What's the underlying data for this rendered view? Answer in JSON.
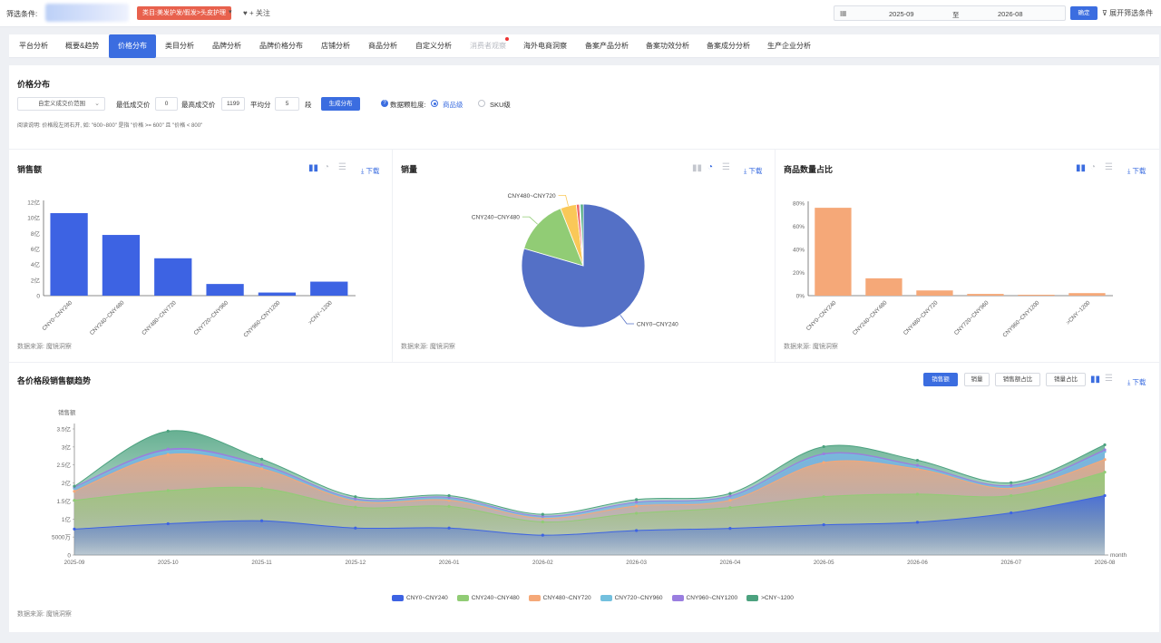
{
  "filter": {
    "label": "筛选条件:",
    "tag": "类目:美发护发/假发>头皮护理",
    "follow": "♥ + 关注",
    "date_start": "2025-09",
    "date_sep": "至",
    "date_end": "2026-08",
    "confirm": "确定",
    "expand": "展开筛选条件"
  },
  "tabs": [
    {
      "label": "平台分析"
    },
    {
      "label": "概要&趋势"
    },
    {
      "label": "价格分布"
    },
    {
      "label": "类目分析"
    },
    {
      "label": "品牌分析"
    },
    {
      "label": "品牌价格分布"
    },
    {
      "label": "店铺分析"
    },
    {
      "label": "商品分析"
    },
    {
      "label": "自定义分析"
    },
    {
      "label": "消费者观察"
    },
    {
      "label": "海外电商洞察"
    },
    {
      "label": "备案产品分析"
    },
    {
      "label": "备案功效分析"
    },
    {
      "label": "备案成分分析"
    },
    {
      "label": "生产企业分析"
    }
  ],
  "price": {
    "title": "价格分布",
    "select": "自定义成交价范围",
    "min_label": "最低成交价",
    "min_value": "0",
    "max_label": "最高成交价",
    "max_value": "1199",
    "split_label": "平均分",
    "split_value": "5",
    "split_unit": "段",
    "generate": "生成分布",
    "granularity": "数据颗粒度:",
    "opt_item": "商品级",
    "opt_sku": "SKU级",
    "note": "阅读说明: 价格段左闭右开, 如: \"600~800\" 是指 \"价格 >= 600\" 且 \"价格 < 800\""
  },
  "common": {
    "download": "⤓ 下载",
    "source": "数据来源: 魔镜洞察"
  },
  "colors": {
    "blue": "#3d63e3",
    "pie_blue": "#5470c6",
    "green": "#91cc75",
    "yellow": "#fac858",
    "orange": "#f5a878",
    "red": "#ee6666",
    "accent": "#3b6de0"
  },
  "sales_chart": {
    "title": "销售额",
    "chart_data": {
      "type": "bar",
      "categories": [
        "CNY0~CNY240",
        "CNY240~CNY480",
        "CNY480~CNY720",
        "CNY720~CNY960",
        "CNY960~CNY1200",
        ">CNY~1200"
      ],
      "values": [
        10.6,
        7.8,
        4.8,
        1.5,
        0.4,
        1.8
      ],
      "y_ticks": [
        "0",
        "2亿",
        "4亿",
        "6亿",
        "8亿",
        "10亿",
        "12亿"
      ],
      "ylim": [
        0,
        12
      ]
    }
  },
  "volume_chart": {
    "title": "销量",
    "chart_data": {
      "type": "pie",
      "labels": [
        "CNY0~CNY240",
        "CNY240~CNY480",
        "CNY480~CNY720",
        "CNY720~CNY960",
        "CNY960~CNY1200",
        ">CNY~1200"
      ],
      "values": [
        79.5,
        14.5,
        4.2,
        0.8,
        0.3,
        0.7
      ],
      "visible_labels": [
        "CNY0~CNY240",
        "CNY240~CNY480",
        "CNY480~CNY720"
      ]
    }
  },
  "count_chart": {
    "title": "商品数量占比",
    "chart_data": {
      "type": "bar",
      "categories": [
        "CNY0~CNY240",
        "CNY240~CNY480",
        "CNY480~CNY720",
        "CNY720~CNY960",
        "CNY960~CNY1200",
        ">CNY~1200"
      ],
      "values": [
        76,
        15,
        4.5,
        1.5,
        0.8,
        2.2
      ],
      "y_ticks": [
        "0%",
        "20%",
        "40%",
        "60%",
        "80%"
      ],
      "ylim": [
        0,
        80
      ]
    }
  },
  "trend": {
    "title": "各价格段销售额趋势",
    "buttons": [
      {
        "label": "销售额"
      },
      {
        "label": "销量"
      },
      {
        "label": "销售额占比"
      },
      {
        "label": "销量占比"
      }
    ],
    "chart_data": {
      "type": "area",
      "stacked": true,
      "ylabel": "销售额",
      "xlabel": "month",
      "x": [
        "2025-09",
        "2025-10",
        "2025-11",
        "2025-12",
        "2026-01",
        "2026-02",
        "2026-03",
        "2026-04",
        "2026-05",
        "2026-06",
        "2026-07",
        "2026-08"
      ],
      "y_ticks": [
        "0",
        "5000万",
        "1亿",
        "1.5亿",
        "2亿",
        "2.5亿",
        "3亿",
        "3.5亿"
      ],
      "ylim": [
        0,
        3.5
      ],
      "series": [
        {
          "name": "CNY0~CNY240",
          "color": "#3d63e3",
          "values": [
            0.72,
            0.87,
            0.95,
            0.75,
            0.75,
            0.55,
            0.68,
            0.74,
            0.84,
            0.91,
            1.17,
            1.65
          ]
        },
        {
          "name": "CNY240~CNY480",
          "color": "#91cc75",
          "values": [
            0.8,
            0.92,
            0.9,
            0.58,
            0.6,
            0.37,
            0.48,
            0.58,
            0.78,
            0.78,
            0.48,
            0.65
          ]
        },
        {
          "name": "CNY480~CNY720",
          "color": "#f5a878",
          "values": [
            0.25,
            1.0,
            0.55,
            0.17,
            0.17,
            0.1,
            0.2,
            0.2,
            0.95,
            0.7,
            0.2,
            0.35
          ]
        },
        {
          "name": "CNY720~CNY960",
          "color": "#73c0de",
          "values": [
            0.08,
            0.1,
            0.07,
            0.04,
            0.05,
            0.04,
            0.08,
            0.09,
            0.2,
            0.06,
            0.05,
            0.22
          ]
        },
        {
          "name": "CNY960~CNY1200",
          "color": "#9a7ee0",
          "values": [
            0.04,
            0.05,
            0.04,
            0.02,
            0.03,
            0.02,
            0.03,
            0.03,
            0.04,
            0.04,
            0.03,
            0.05
          ]
        },
        {
          "name": ">CNY~1200",
          "color": "#4ca27f",
          "values": [
            0.02,
            0.5,
            0.15,
            0.06,
            0.05,
            0.05,
            0.07,
            0.07,
            0.2,
            0.14,
            0.08,
            0.14
          ]
        }
      ]
    }
  }
}
